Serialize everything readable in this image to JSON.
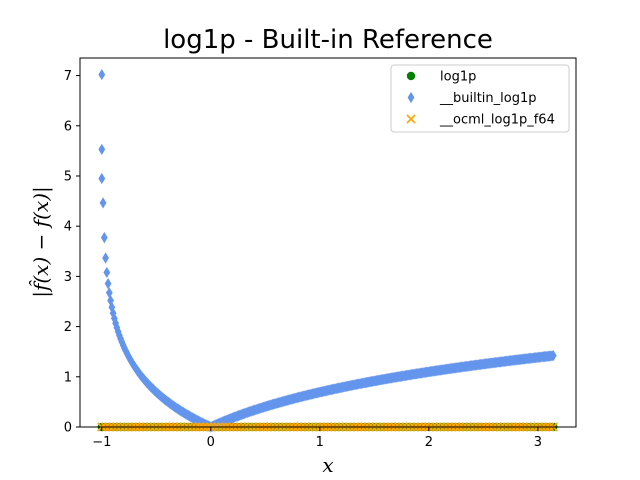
{
  "chart_data": {
    "type": "scatter",
    "title": "log1p - Built-in Reference",
    "xlabel": "x",
    "ylabel": "|f̂(x) − f(x)|",
    "xlim": [
      -1.2,
      3.35
    ],
    "ylim": [
      0,
      7.35
    ],
    "xticks": [
      -1,
      0,
      1,
      2,
      3
    ],
    "yticks": [
      0,
      1,
      2,
      3,
      4,
      5,
      6,
      7
    ],
    "grid": false,
    "legend_position": "top-right",
    "series": [
      {
        "name": "log1p",
        "marker": "circle",
        "color": "#008000",
        "x_range": [
          -1,
          3.14159
        ],
        "y_constant": 0
      },
      {
        "name": "__builtin_log1p",
        "marker": "diamond",
        "color": "#6495ed",
        "x_range": [
          -1,
          3.14159
        ],
        "curve": "abs(ln(1+x))",
        "outliers": [
          {
            "x": -1.0,
            "y": 7.02
          },
          {
            "x": -1.0,
            "y": 5.53
          },
          {
            "x": -1.0,
            "y": 4.95
          }
        ]
      },
      {
        "name": "__ocml_log1p_f64",
        "marker": "x",
        "color": "#ffa500",
        "x_range": [
          -1,
          3.14159
        ],
        "y_constant": 0
      }
    ]
  }
}
